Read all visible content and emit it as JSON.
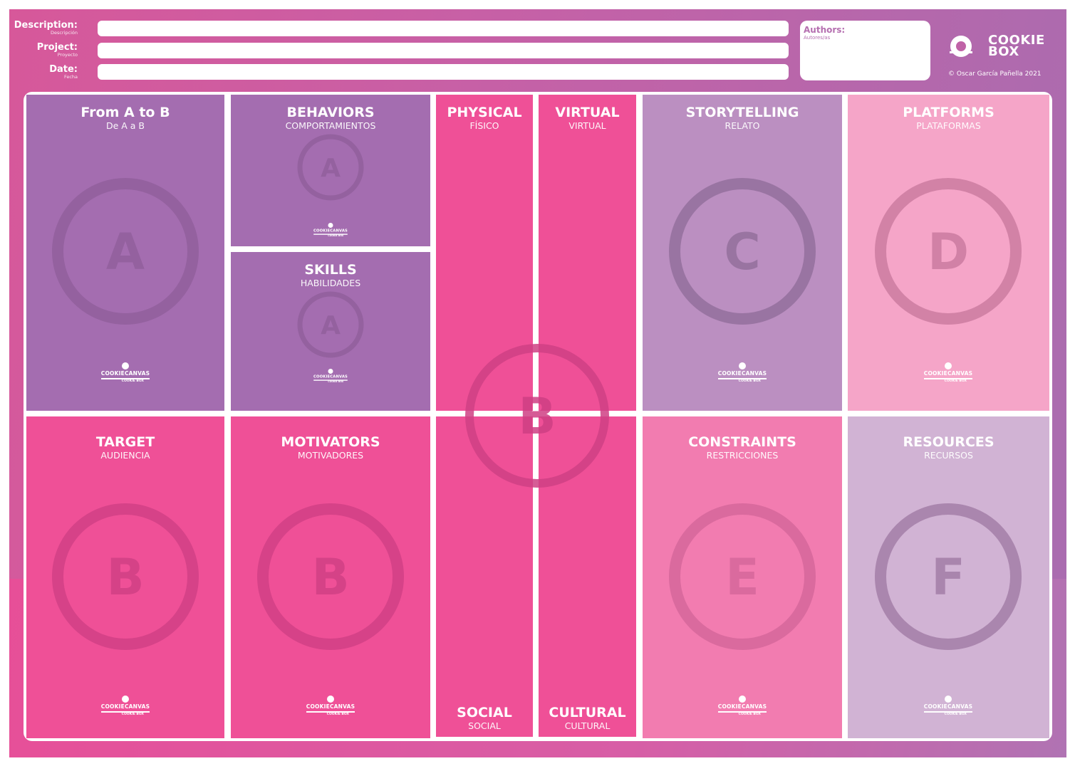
{
  "header": {
    "description": {
      "label": "Description:",
      "sublabel": "Descripción",
      "value": ""
    },
    "project": {
      "label": "Project:",
      "sublabel": "Proyecto",
      "value": ""
    },
    "date": {
      "label": "Date:",
      "sublabel": "Fecha",
      "value": ""
    },
    "authors": {
      "label": "Authors:",
      "sublabel": "Autores/as",
      "value": ""
    }
  },
  "brand": {
    "line1": "COOKIE",
    "line2": "BOX",
    "copyright": "© Oscar García Pañella 2021"
  },
  "footer_logo": {
    "name": "COOKIECANVAS",
    "box": "COOKIE BOX"
  },
  "colors": {
    "purple": "#a46db0",
    "pink": "#ef5097",
    "lilac": "#bb8fc1",
    "light_pink": "#f5a5c8",
    "mid_pink": "#f27cb0",
    "pale_lilac": "#d1b3d4"
  },
  "sections": {
    "from_a_to_b": {
      "title": "From A to B",
      "subtitle": "De A a B",
      "letter": "A"
    },
    "behaviors": {
      "title": "BEHAVIORS",
      "subtitle": "COMPORTAMIENTOS",
      "letter": "A"
    },
    "skills": {
      "title": "SKILLS",
      "subtitle": "HABILIDADES",
      "letter": "A"
    },
    "physical": {
      "title": "PHYSICAL",
      "subtitle": "FÍSICO"
    },
    "virtual": {
      "title": "VIRTUAL",
      "subtitle": "VIRTUAL"
    },
    "social": {
      "title": "SOCIAL",
      "subtitle": "SOCIAL"
    },
    "cultural": {
      "title": "CULTURAL",
      "subtitle": "CULTURAL"
    },
    "center": {
      "letter": "B"
    },
    "storytelling": {
      "title": "STORYTELLING",
      "subtitle": "RELATO",
      "letter": "C"
    },
    "platforms": {
      "title": "PLATFORMS",
      "subtitle": "PLATAFORMAS",
      "letter": "D"
    },
    "target": {
      "title": "TARGET",
      "subtitle": "AUDIENCIA",
      "letter": "B"
    },
    "motivators": {
      "title": "MOTIVATORS",
      "subtitle": "MOTIVADORES",
      "letter": "B"
    },
    "constraints": {
      "title": "CONSTRAINTS",
      "subtitle": "RESTRICCIONES",
      "letter": "E"
    },
    "resources": {
      "title": "RESOURCES",
      "subtitle": "RECURSOS",
      "letter": "F"
    }
  }
}
